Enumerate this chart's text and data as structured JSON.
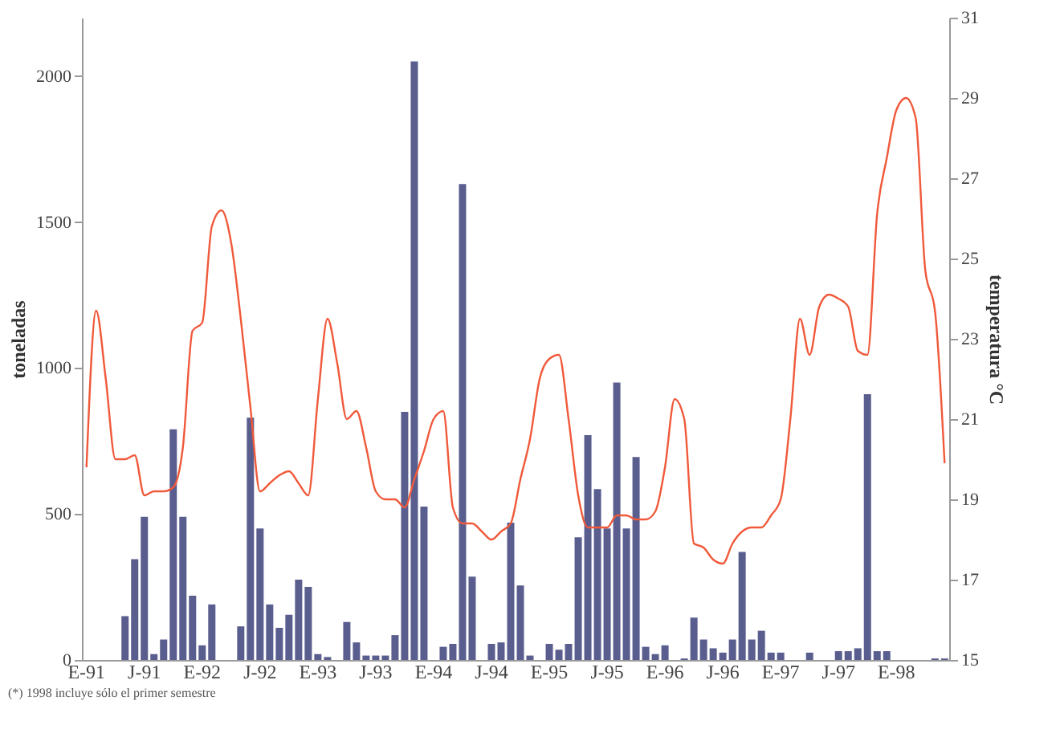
{
  "chart_data": {
    "type": "bar",
    "ylabel": "toneladas",
    "y2label": "temperatura °C",
    "categories": [
      "E-91",
      null,
      null,
      null,
      null,
      null,
      "J-91",
      null,
      null,
      null,
      null,
      null,
      "E-92",
      null,
      null,
      null,
      null,
      null,
      "J-92",
      null,
      null,
      null,
      null,
      null,
      "E-93",
      null,
      null,
      null,
      null,
      null,
      "J-93",
      null,
      null,
      null,
      null,
      null,
      "E-94",
      null,
      null,
      null,
      null,
      null,
      "J-94",
      null,
      null,
      null,
      null,
      null,
      "E-95",
      null,
      null,
      null,
      null,
      null,
      "J-95",
      null,
      null,
      null,
      null,
      null,
      "E-96",
      null,
      null,
      null,
      null,
      null,
      "J-96",
      null,
      null,
      null,
      null,
      null,
      "E-97",
      null,
      null,
      null,
      null,
      null,
      "J-97",
      null,
      null,
      null,
      null,
      null,
      "E-98",
      null,
      null,
      null,
      null,
      null
    ],
    "series": [
      {
        "color": "#5a5e8e",
        "values": [
          0,
          0,
          0,
          0,
          150,
          345,
          490,
          20,
          70,
          790,
          490,
          220,
          50,
          190,
          0,
          0,
          115,
          830,
          450,
          190,
          110,
          155,
          275,
          250,
          20,
          10,
          0,
          130,
          60,
          15,
          15,
          15,
          85,
          850,
          2050,
          525,
          0,
          45,
          55,
          1630,
          285,
          0,
          55,
          60,
          470,
          255,
          15,
          0,
          55,
          35,
          55,
          420,
          770,
          585,
          450,
          950,
          450,
          695,
          45,
          20,
          50,
          0,
          5,
          145,
          70,
          40,
          25,
          70,
          370,
          70,
          100,
          25,
          25,
          0,
          0,
          25,
          0,
          0,
          30,
          30,
          40,
          910,
          30,
          30,
          0,
          0,
          0,
          0,
          5,
          5
        ]
      },
      {
        "type": "line",
        "axis": "y2",
        "color": "#f0593a",
        "values": [
          19.8,
          23.7,
          22.0,
          20.0,
          20.0,
          20.1,
          19.1,
          19.2,
          19.2,
          19.3,
          20.3,
          23.2,
          23.4,
          25.8,
          26.2,
          25.4,
          23.5,
          21.3,
          19.2,
          19.4,
          19.6,
          19.7,
          19.4,
          19.1,
          21.5,
          23.5,
          22.4,
          21.0,
          21.2,
          20.3,
          19.2,
          19.0,
          19.0,
          18.8,
          19.5,
          20.2,
          21.0,
          21.2,
          18.8,
          18.4,
          18.4,
          18.2,
          18.0,
          18.2,
          18.4,
          19.5,
          20.5,
          22.0,
          22.5,
          22.6,
          21.0,
          19.1,
          18.3,
          18.3,
          18.3,
          18.6,
          18.6,
          18.5,
          18.5,
          18.7,
          19.8,
          21.5,
          21.0,
          17.9,
          17.8,
          17.5,
          17.4,
          17.9,
          18.2,
          18.3,
          18.3,
          18.6,
          19.0,
          21.0,
          23.5,
          22.6,
          23.8,
          24.1,
          24.0,
          23.8,
          22.7,
          22.6,
          26.1,
          27.5,
          28.7,
          29.0,
          28.5,
          24.7,
          23.7,
          19.9
        ]
      }
    ],
    "ylim": [
      0,
      2200
    ],
    "yticks": [
      0,
      500,
      1000,
      1500,
      2000
    ],
    "y2lim": [
      15,
      31
    ],
    "y2ticks": [
      15,
      17,
      19,
      21,
      23,
      25,
      27,
      29,
      31
    ],
    "grid": false,
    "annotations": [
      "(*) 1998 incluye sólo el primer semestre"
    ]
  }
}
